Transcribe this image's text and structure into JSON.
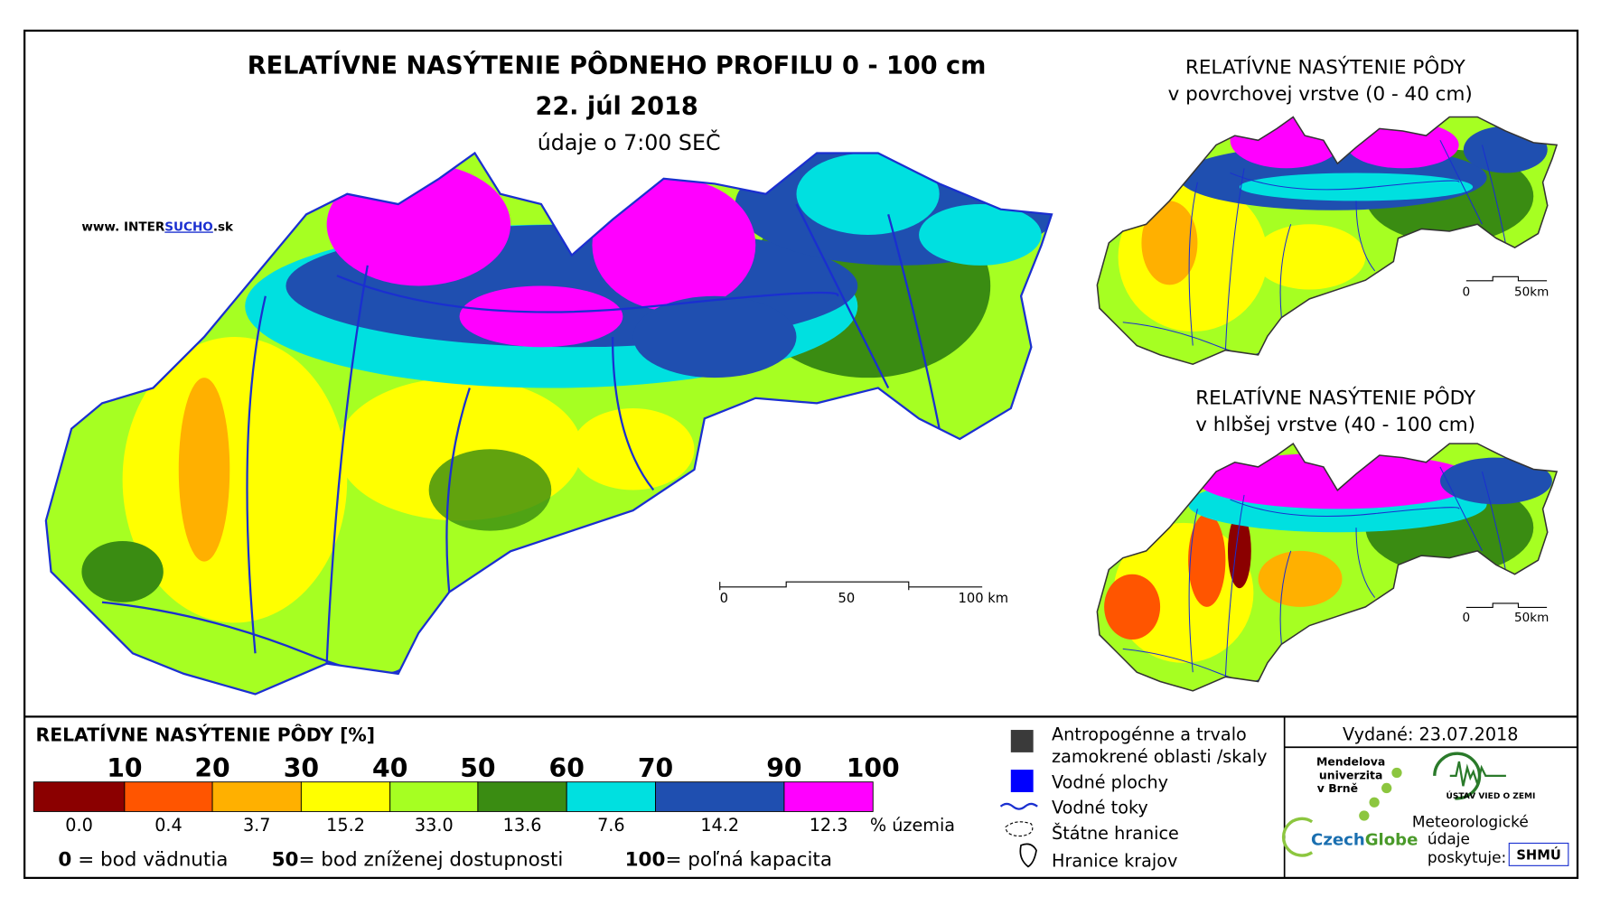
{
  "header": {
    "title": "RELATÍVNE NASÝTENIE PÔDNEHO PROFILU 0 - 100 cm",
    "date": "22. júl 2018",
    "time": "údaje o 7:00 SEČ",
    "website": {
      "prefix": "www. INTER",
      "highlight": "SUCHO",
      "suffix": ".sk"
    }
  },
  "main_map": {
    "scale": [
      "0",
      "50",
      "100 km"
    ]
  },
  "inset_maps": [
    {
      "title": "RELATÍVNE NASÝTENIE PÔDY",
      "subtitle": "v povrchovej vrstve (0 - 40 cm)",
      "scale": [
        "0",
        "50km"
      ]
    },
    {
      "title": "RELATÍVNE NASÝTENIE PÔDY",
      "subtitle": "v hlbšej vrstve (40 - 100 cm)",
      "scale": [
        "0",
        "50km"
      ]
    }
  ],
  "legend": {
    "title": "RELATÍVNE NASÝTENIE PÔDY [%]",
    "thresholds": [
      "10",
      "20",
      "30",
      "40",
      "50",
      "60",
      "70",
      "90",
      "100"
    ],
    "classes": [
      {
        "color": "#8b0000",
        "share": "0.0"
      },
      {
        "color": "#ff5500",
        "share": "0.4"
      },
      {
        "color": "#ffb000",
        "share": "3.7"
      },
      {
        "color": "#ffff00",
        "share": "15.2"
      },
      {
        "color": "#a6ff22",
        "share": "33.0"
      },
      {
        "color": "#3a8c12",
        "share": "13.6"
      },
      {
        "color": "#00e0e0",
        "share": "7.6"
      },
      {
        "color": "#1f4fb0",
        "share": "14.2"
      },
      {
        "color": "#ff00ff",
        "share": "12.3"
      }
    ],
    "share_unit": "% územia",
    "notes": [
      {
        "value": "0",
        "label": "= bod vädnutia"
      },
      {
        "value": "50",
        "label": "= bod zníženej dostupnosti"
      },
      {
        "value": "100",
        "label": "= poľná kapacita"
      }
    ]
  },
  "symbols": [
    "Antropogénne a trvalo",
    "zamokrené oblasti /skaly",
    "Vodné plochy",
    "Vodné toky",
    "Štátne hranice",
    "Hranice krajov"
  ],
  "issued": "Vydané: 23.07.2018",
  "credits": {
    "mendel": [
      "Mendelova",
      "univerzita",
      "v Brně"
    ],
    "czechglobe": [
      "Czech",
      "Globe"
    ],
    "ustav": "ÚSTAV VIED O ZEMI",
    "meteo": [
      "Meteorologické",
      "údaje",
      "poskytuje:"
    ],
    "shmu": "SHMÚ"
  }
}
